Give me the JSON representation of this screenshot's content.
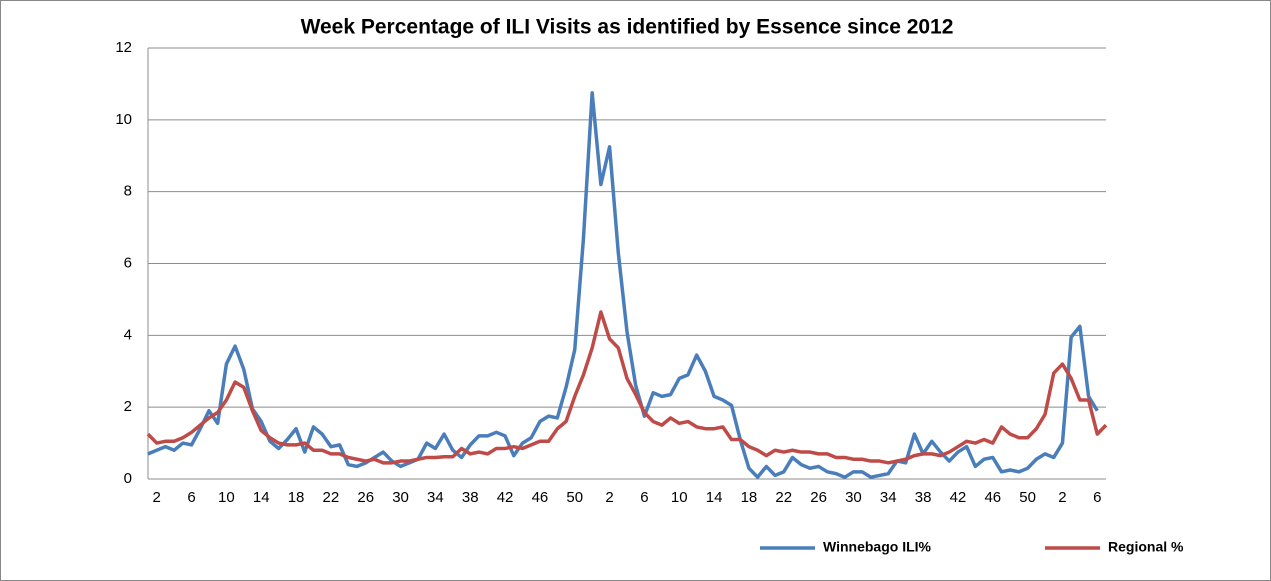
{
  "chart_data": {
    "type": "line",
    "title": "Week Percentage of ILI Visits as identified by Essence since 2012",
    "categories": [
      null,
      "2",
      null,
      null,
      null,
      "6",
      null,
      null,
      null,
      "10",
      null,
      null,
      null,
      "14",
      null,
      null,
      null,
      "18",
      null,
      null,
      null,
      "22",
      null,
      null,
      null,
      "26",
      null,
      null,
      null,
      "30",
      null,
      null,
      null,
      "34",
      null,
      null,
      null,
      "38",
      null,
      null,
      null,
      "42",
      null,
      null,
      null,
      "46",
      null,
      null,
      null,
      "50",
      null,
      null,
      null,
      "2",
      null,
      null,
      null,
      "6",
      null,
      null,
      null,
      "10",
      null,
      null,
      null,
      "14",
      null,
      null,
      null,
      "18",
      null,
      null,
      null,
      "22",
      null,
      null,
      null,
      "26",
      null,
      null,
      null,
      "30",
      null,
      null,
      null,
      "34",
      null,
      null,
      null,
      "38",
      null,
      null,
      null,
      "42",
      null,
      null,
      null,
      "46",
      null,
      null,
      null,
      "50",
      null,
      null,
      null,
      "2",
      null,
      null,
      null,
      "6",
      null
    ],
    "series": [
      {
        "name": "Winnebago ILI%",
        "color": "#4a7ebb",
        "values": [
          0.7,
          0.8,
          0.9,
          0.8,
          1.0,
          0.95,
          1.4,
          1.9,
          1.55,
          3.2,
          3.7,
          3.05,
          1.95,
          1.6,
          1.05,
          0.85,
          1.1,
          1.4,
          0.75,
          1.45,
          1.25,
          0.9,
          0.95,
          0.4,
          0.35,
          0.45,
          0.6,
          0.75,
          0.5,
          0.35,
          0.45,
          0.55,
          1.0,
          0.85,
          1.25,
          0.8,
          0.6,
          0.95,
          1.2,
          1.2,
          1.3,
          1.2,
          0.65,
          1.0,
          1.15,
          1.6,
          1.75,
          1.7,
          2.55,
          3.6,
          6.7,
          10.75,
          8.2,
          9.25,
          6.3,
          4.1,
          2.6,
          1.75,
          2.4,
          2.3,
          2.35,
          2.8,
          2.9,
          3.45,
          3.0,
          2.3,
          2.2,
          2.05,
          1.1,
          0.3,
          0.05,
          0.35,
          0.1,
          0.2,
          0.6,
          0.4,
          0.3,
          0.35,
          0.2,
          0.15,
          0.05,
          0.2,
          0.2,
          0.05,
          0.1,
          0.15,
          0.5,
          0.45,
          1.25,
          0.7,
          1.05,
          0.75,
          0.5,
          0.75,
          0.9,
          0.35,
          0.55,
          0.6,
          0.2,
          0.25,
          0.2,
          0.3,
          0.55,
          0.7,
          0.6,
          1.0,
          3.95,
          4.25,
          2.3,
          1.9,
          null
        ]
      },
      {
        "name": "Regional %",
        "color": "#be4b48",
        "values": [
          1.25,
          1.0,
          1.05,
          1.05,
          1.15,
          1.3,
          1.5,
          1.7,
          1.85,
          2.2,
          2.7,
          2.55,
          1.9,
          1.35,
          1.15,
          1.0,
          0.95,
          0.95,
          1.0,
          0.8,
          0.8,
          0.7,
          0.7,
          0.6,
          0.55,
          0.5,
          0.55,
          0.45,
          0.45,
          0.5,
          0.5,
          0.55,
          0.6,
          0.6,
          0.62,
          0.62,
          0.85,
          0.7,
          0.75,
          0.7,
          0.85,
          0.85,
          0.9,
          0.85,
          0.95,
          1.05,
          1.05,
          1.4,
          1.6,
          2.3,
          2.9,
          3.65,
          4.65,
          3.9,
          3.65,
          2.8,
          2.35,
          1.85,
          1.6,
          1.5,
          1.7,
          1.55,
          1.6,
          1.45,
          1.4,
          1.4,
          1.45,
          1.1,
          1.1,
          0.9,
          0.8,
          0.65,
          0.8,
          0.75,
          0.8,
          0.75,
          0.75,
          0.7,
          0.7,
          0.6,
          0.6,
          0.55,
          0.55,
          0.5,
          0.5,
          0.45,
          0.5,
          0.55,
          0.65,
          0.7,
          0.7,
          0.65,
          0.75,
          0.9,
          1.05,
          1.0,
          1.1,
          1.0,
          1.45,
          1.25,
          1.15,
          1.15,
          1.4,
          1.8,
          2.95,
          3.2,
          2.8,
          2.2,
          2.2,
          1.25,
          1.5
        ]
      }
    ],
    "ylim": [
      0,
      12
    ],
    "yticks": [
      0,
      2,
      4,
      6,
      8,
      10,
      12
    ],
    "grid": true,
    "legend": "bottom-right"
  }
}
